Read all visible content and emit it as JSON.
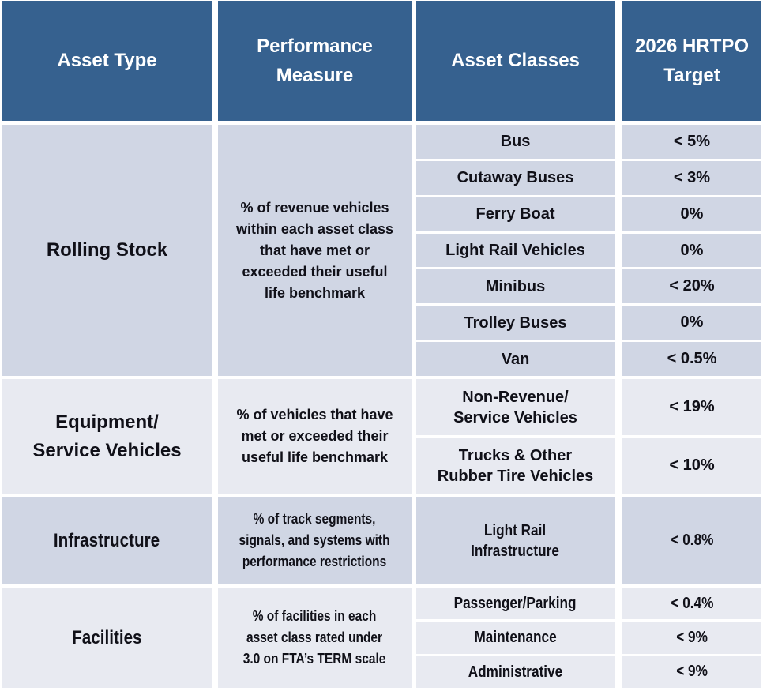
{
  "colors": {
    "header_bg": "#36618F",
    "header_text": "#FFFFFF",
    "section_dark": "#D0D6E4",
    "section_light": "#E8EAF1",
    "divider": "#FFFFFF",
    "body_text": "#101018"
  },
  "header": {
    "columns": [
      "Asset Type",
      "Performance\nMeasure",
      "Asset Classes",
      "2026 HRTPO\nTarget"
    ]
  },
  "sections": [
    {
      "asset_type": "Rolling Stock",
      "performance_measure": "% of revenue vehicles\nwithin each asset class\nthat have met or\nexceeded their useful\nlife benchmark",
      "rows": [
        {
          "asset_class": "Bus",
          "target": "< 5%"
        },
        {
          "asset_class": "Cutaway Buses",
          "target": "< 3%"
        },
        {
          "asset_class": "Ferry Boat",
          "target": "0%"
        },
        {
          "asset_class": "Light Rail Vehicles",
          "target": "0%"
        },
        {
          "asset_class": "Minibus",
          "target": "< 20%"
        },
        {
          "asset_class": "Trolley Buses",
          "target": "0%"
        },
        {
          "asset_class": "Van",
          "target": "< 0.5%"
        }
      ]
    },
    {
      "asset_type": "Equipment/\nService Vehicles",
      "performance_measure": "% of vehicles that have\nmet or exceeded their\nuseful life benchmark",
      "rows": [
        {
          "asset_class": "Non-Revenue/\nService Vehicles",
          "target": "< 19%"
        },
        {
          "asset_class": "Trucks & Other\nRubber Tire Vehicles",
          "target": "< 10%"
        }
      ]
    },
    {
      "asset_type": "Infrastructure",
      "performance_measure": "% of track segments,\nsignals, and systems with\nperformance restrictions",
      "rows": [
        {
          "asset_class": "Light Rail\nInfrastructure",
          "target": "< 0.8%"
        }
      ]
    },
    {
      "asset_type": "Facilities",
      "performance_measure": "% of facilities in each\nasset class rated under\n3.0 on FTA’s TERM scale",
      "rows": [
        {
          "asset_class": "Passenger/Parking",
          "target": "< 0.4%"
        },
        {
          "asset_class": "Maintenance",
          "target": "< 9%"
        },
        {
          "asset_class": "Administrative",
          "target": "< 9%"
        }
      ]
    }
  ]
}
